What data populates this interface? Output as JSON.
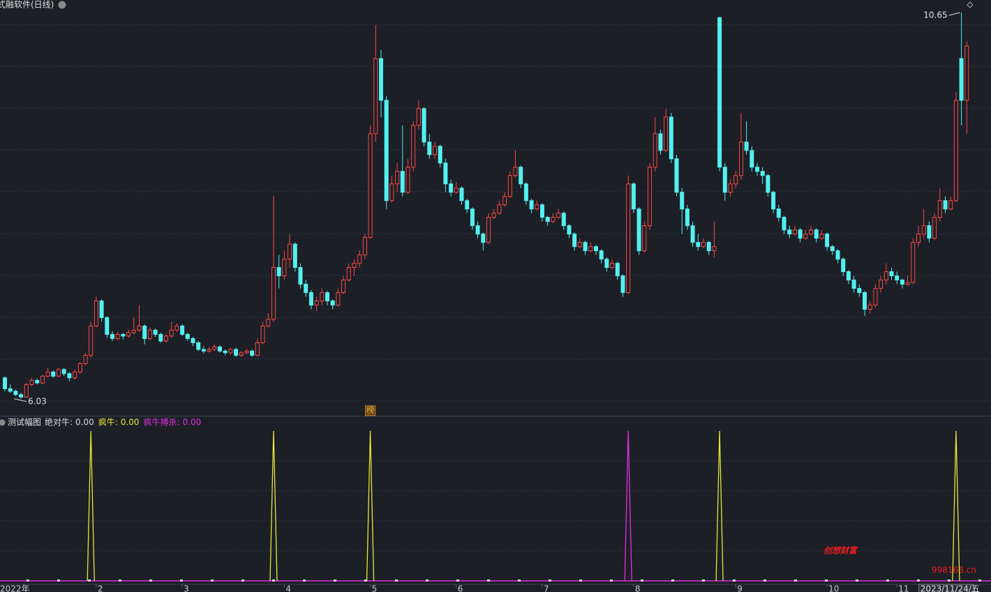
{
  "chart_data": {
    "type": "candlestick",
    "title": "式融软件(日线)",
    "candles": [
      [
        6.28,
        6.3,
        6.12,
        6.15
      ],
      [
        6.15,
        6.2,
        6.1,
        6.12
      ],
      [
        6.12,
        6.14,
        6.06,
        6.08
      ],
      [
        6.08,
        6.1,
        6.03,
        6.05
      ],
      [
        6.05,
        6.22,
        6.04,
        6.2
      ],
      [
        6.2,
        6.28,
        6.18,
        6.25
      ],
      [
        6.25,
        6.27,
        6.2,
        6.22
      ],
      [
        6.22,
        6.32,
        6.2,
        6.3
      ],
      [
        6.3,
        6.4,
        6.28,
        6.35
      ],
      [
        6.35,
        6.37,
        6.28,
        6.3
      ],
      [
        6.3,
        6.4,
        6.29,
        6.38
      ],
      [
        6.38,
        6.4,
        6.3,
        6.33
      ],
      [
        6.33,
        6.35,
        6.24,
        6.28
      ],
      [
        6.28,
        6.38,
        6.26,
        6.35
      ],
      [
        6.35,
        6.47,
        6.33,
        6.45
      ],
      [
        6.45,
        6.58,
        6.43,
        6.55
      ],
      [
        6.55,
        6.95,
        6.52,
        6.9
      ],
      [
        6.9,
        7.25,
        6.88,
        7.2
      ],
      [
        7.2,
        7.22,
        6.95,
        7.0
      ],
      [
        7.0,
        7.02,
        6.76,
        6.8
      ],
      [
        6.8,
        6.84,
        6.72,
        6.75
      ],
      [
        6.75,
        6.83,
        6.73,
        6.8
      ],
      [
        6.8,
        6.82,
        6.74,
        6.78
      ],
      [
        6.78,
        6.86,
        6.76,
        6.82
      ],
      [
        6.82,
        7.0,
        6.8,
        6.85
      ],
      [
        6.85,
        7.15,
        6.83,
        6.9
      ],
      [
        6.9,
        6.92,
        6.68,
        6.75
      ],
      [
        6.75,
        6.88,
        6.73,
        6.85
      ],
      [
        6.85,
        6.87,
        6.77,
        6.8
      ],
      [
        6.8,
        6.82,
        6.7,
        6.72
      ],
      [
        6.72,
        6.8,
        6.7,
        6.78
      ],
      [
        6.78,
        6.95,
        6.76,
        6.85
      ],
      [
        6.85,
        6.93,
        6.83,
        6.9
      ],
      [
        6.9,
        6.92,
        6.78,
        6.8
      ],
      [
        6.8,
        6.82,
        6.72,
        6.75
      ],
      [
        6.75,
        6.77,
        6.66,
        6.7
      ],
      [
        6.7,
        6.72,
        6.6,
        6.62
      ],
      [
        6.62,
        6.66,
        6.57,
        6.6
      ],
      [
        6.6,
        6.65,
        6.58,
        6.62
      ],
      [
        6.62,
        6.68,
        6.6,
        6.65
      ],
      [
        6.65,
        6.67,
        6.58,
        6.6
      ],
      [
        6.6,
        6.62,
        6.55,
        6.58
      ],
      [
        6.58,
        6.64,
        6.56,
        6.62
      ],
      [
        6.62,
        6.64,
        6.53,
        6.55
      ],
      [
        6.55,
        6.6,
        6.53,
        6.58
      ],
      [
        6.58,
        6.63,
        6.56,
        6.6
      ],
      [
        6.6,
        6.62,
        6.53,
        6.55
      ],
      [
        6.55,
        6.75,
        6.54,
        6.7
      ],
      [
        6.7,
        6.95,
        6.68,
        6.9
      ],
      [
        6.9,
        7.05,
        6.88,
        6.98
      ],
      [
        6.98,
        8.46,
        6.95,
        7.6
      ],
      [
        7.6,
        7.75,
        7.35,
        7.5
      ],
      [
        7.5,
        7.8,
        7.45,
        7.7
      ],
      [
        7.7,
        8.0,
        7.6,
        7.88
      ],
      [
        7.88,
        7.9,
        7.55,
        7.6
      ],
      [
        7.6,
        7.65,
        7.35,
        7.4
      ],
      [
        7.4,
        7.45,
        7.25,
        7.3
      ],
      [
        7.3,
        7.33,
        7.1,
        7.15
      ],
      [
        7.15,
        7.25,
        7.08,
        7.2
      ],
      [
        7.2,
        7.35,
        7.15,
        7.3
      ],
      [
        7.3,
        7.32,
        7.15,
        7.2
      ],
      [
        7.2,
        7.22,
        7.1,
        7.15
      ],
      [
        7.15,
        7.35,
        7.13,
        7.3
      ],
      [
        7.3,
        7.5,
        7.28,
        7.45
      ],
      [
        7.45,
        7.65,
        7.43,
        7.6
      ],
      [
        7.6,
        7.7,
        7.5,
        7.65
      ],
      [
        7.65,
        7.8,
        7.6,
        7.75
      ],
      [
        7.75,
        8.0,
        7.7,
        7.96
      ],
      [
        7.96,
        9.3,
        7.94,
        9.2
      ],
      [
        9.2,
        10.5,
        9.1,
        10.1
      ],
      [
        10.1,
        10.2,
        9.4,
        9.6
      ],
      [
        9.6,
        9.65,
        8.3,
        8.4
      ],
      [
        8.4,
        8.7,
        8.38,
        8.6
      ],
      [
        8.6,
        8.85,
        8.5,
        8.75
      ],
      [
        8.75,
        9.3,
        8.45,
        8.5
      ],
      [
        8.5,
        8.9,
        8.48,
        8.8
      ],
      [
        8.8,
        9.35,
        8.75,
        9.3
      ],
      [
        9.3,
        9.6,
        9.25,
        9.5
      ],
      [
        9.5,
        9.52,
        9.05,
        9.1
      ],
      [
        9.1,
        9.2,
        8.9,
        8.95
      ],
      [
        8.95,
        9.1,
        8.9,
        9.05
      ],
      [
        9.05,
        9.07,
        8.8,
        8.85
      ],
      [
        8.85,
        8.9,
        8.5,
        8.6
      ],
      [
        8.6,
        8.65,
        8.45,
        8.5
      ],
      [
        8.5,
        8.62,
        8.48,
        8.55
      ],
      [
        8.55,
        8.57,
        8.35,
        8.4
      ],
      [
        8.4,
        8.42,
        8.25,
        8.3
      ],
      [
        8.3,
        8.32,
        8.05,
        8.1
      ],
      [
        8.1,
        8.15,
        7.95,
        8.0
      ],
      [
        8.0,
        8.02,
        7.8,
        7.9
      ],
      [
        7.9,
        8.25,
        7.88,
        8.2
      ],
      [
        8.2,
        8.3,
        8.18,
        8.25
      ],
      [
        8.25,
        8.4,
        8.23,
        8.35
      ],
      [
        8.35,
        8.5,
        8.33,
        8.45
      ],
      [
        8.45,
        8.75,
        8.43,
        8.7
      ],
      [
        8.7,
        9.0,
        8.68,
        8.8
      ],
      [
        8.8,
        8.82,
        8.55,
        8.6
      ],
      [
        8.6,
        8.62,
        8.35,
        8.4
      ],
      [
        8.4,
        8.42,
        8.25,
        8.3
      ],
      [
        8.3,
        8.4,
        8.28,
        8.35
      ],
      [
        8.35,
        8.37,
        8.15,
        8.2
      ],
      [
        8.2,
        8.22,
        8.1,
        8.15
      ],
      [
        8.15,
        8.25,
        8.13,
        8.2
      ],
      [
        8.2,
        8.3,
        8.18,
        8.25
      ],
      [
        8.25,
        8.27,
        8.05,
        8.1
      ],
      [
        8.1,
        8.12,
        7.95,
        8.0
      ],
      [
        8.0,
        8.02,
        7.8,
        7.85
      ],
      [
        7.85,
        7.95,
        7.83,
        7.9
      ],
      [
        7.9,
        7.92,
        7.75,
        7.8
      ],
      [
        7.8,
        7.9,
        7.78,
        7.85
      ],
      [
        7.85,
        7.87,
        7.75,
        7.8
      ],
      [
        7.8,
        7.82,
        7.65,
        7.7
      ],
      [
        7.7,
        7.72,
        7.55,
        7.6
      ],
      [
        7.6,
        7.7,
        7.58,
        7.65
      ],
      [
        7.65,
        7.67,
        7.45,
        7.5
      ],
      [
        7.5,
        7.52,
        7.25,
        7.3
      ],
      [
        7.3,
        8.7,
        7.28,
        8.6
      ],
      [
        8.6,
        8.62,
        8.25,
        8.3
      ],
      [
        8.3,
        8.32,
        7.75,
        7.8
      ],
      [
        7.8,
        8.15,
        7.78,
        8.1
      ],
      [
        8.1,
        8.85,
        8.05,
        8.8
      ],
      [
        8.8,
        9.4,
        8.75,
        9.2
      ],
      [
        9.2,
        9.25,
        8.95,
        9.0
      ],
      [
        9.0,
        9.5,
        8.98,
        9.4
      ],
      [
        9.4,
        9.45,
        8.85,
        8.9
      ],
      [
        8.9,
        8.95,
        8.45,
        8.5
      ],
      [
        8.5,
        8.55,
        8.0,
        8.3
      ],
      [
        8.3,
        8.35,
        8.05,
        8.1
      ],
      [
        8.1,
        8.15,
        7.85,
        7.9
      ],
      [
        7.9,
        8.0,
        7.8,
        7.85
      ],
      [
        7.85,
        7.95,
        7.83,
        7.9
      ],
      [
        7.9,
        7.92,
        7.75,
        7.8
      ],
      [
        7.8,
        8.15,
        7.72,
        7.85
      ],
      [
        10.59,
        10.59,
        8.75,
        8.8
      ],
      [
        8.8,
        8.85,
        8.4,
        8.5
      ],
      [
        8.5,
        8.65,
        8.45,
        8.6
      ],
      [
        8.6,
        8.75,
        8.55,
        8.7
      ],
      [
        8.7,
        9.45,
        8.65,
        9.1
      ],
      [
        9.1,
        9.35,
        8.95,
        9.0
      ],
      [
        9.0,
        9.05,
        8.75,
        8.8
      ],
      [
        8.8,
        8.85,
        8.7,
        8.75
      ],
      [
        8.75,
        8.8,
        8.6,
        8.7
      ],
      [
        8.7,
        8.72,
        8.45,
        8.5
      ],
      [
        8.5,
        8.52,
        8.25,
        8.3
      ],
      [
        8.3,
        8.35,
        8.15,
        8.2
      ],
      [
        8.2,
        8.22,
        8.0,
        8.05
      ],
      [
        8.05,
        8.1,
        7.95,
        8.0
      ],
      [
        8.0,
        8.1,
        7.98,
        8.05
      ],
      [
        8.05,
        8.07,
        7.9,
        7.95
      ],
      [
        7.95,
        8.05,
        7.93,
        8.0
      ],
      [
        8.0,
        8.1,
        7.98,
        8.05
      ],
      [
        8.05,
        8.07,
        7.9,
        7.95
      ],
      [
        7.95,
        8.05,
        7.93,
        8.0
      ],
      [
        8.0,
        8.02,
        7.8,
        7.85
      ],
      [
        7.85,
        7.87,
        7.75,
        7.8
      ],
      [
        7.8,
        7.82,
        7.65,
        7.7
      ],
      [
        7.7,
        7.72,
        7.5,
        7.55
      ],
      [
        7.55,
        7.57,
        7.4,
        7.45
      ],
      [
        7.45,
        7.5,
        7.3,
        7.35
      ],
      [
        7.35,
        7.4,
        7.25,
        7.3
      ],
      [
        7.3,
        7.32,
        7.02,
        7.1
      ],
      [
        7.1,
        7.2,
        7.05,
        7.15
      ],
      [
        7.15,
        7.4,
        7.12,
        7.35
      ],
      [
        7.35,
        7.5,
        7.3,
        7.45
      ],
      [
        7.45,
        7.65,
        7.4,
        7.55
      ],
      [
        7.55,
        7.6,
        7.45,
        7.5
      ],
      [
        7.5,
        7.55,
        7.4,
        7.45
      ],
      [
        7.45,
        7.47,
        7.35,
        7.4
      ],
      [
        7.4,
        7.5,
        7.38,
        7.42
      ],
      [
        7.42,
        7.95,
        7.4,
        7.9
      ],
      [
        7.9,
        8.1,
        7.85,
        8.0
      ],
      [
        8.0,
        8.3,
        7.95,
        8.1
      ],
      [
        8.1,
        8.15,
        7.9,
        7.95
      ],
      [
        7.95,
        8.25,
        7.93,
        8.2
      ],
      [
        8.2,
        8.55,
        8.15,
        8.4
      ],
      [
        8.4,
        8.45,
        8.25,
        8.3
      ],
      [
        8.3,
        8.45,
        8.28,
        8.4
      ],
      [
        8.4,
        9.7,
        8.38,
        9.6
      ],
      [
        10.1,
        10.65,
        9.3,
        9.6
      ],
      [
        9.6,
        10.3,
        9.2,
        10.25
      ]
    ],
    "up_color": "#ff4848",
    "down_color": "#54f0f0",
    "ylim": [
      5.82,
      10.8
    ],
    "grid": true,
    "max_label": {
      "index": 178,
      "value": 10.65,
      "label": "10.65"
    },
    "min_label": {
      "index": 3,
      "value": 6.03,
      "label": "6.03"
    },
    "marker": {
      "index": 68,
      "label": "榜"
    },
    "x_labels": [
      {
        "index": 0,
        "label": "2022年"
      },
      {
        "index": 17,
        "label": "2"
      },
      {
        "index": 33,
        "label": "3"
      },
      {
        "index": 52,
        "label": "4"
      },
      {
        "index": 68,
        "label": "5"
      },
      {
        "index": 84,
        "label": "6"
      },
      {
        "index": 100,
        "label": "7"
      },
      {
        "index": 117,
        "label": "8"
      },
      {
        "index": 136,
        "label": "9"
      },
      {
        "index": 153,
        "label": "10"
      },
      {
        "index": 166,
        "label": "11"
      }
    ],
    "current_date": {
      "index": 171,
      "label": "2023/11/24/五"
    },
    "indicator": {
      "name": "测试幅图",
      "ylim": [
        0,
        1
      ],
      "series": [
        {
          "name": "绝对牛:",
          "value": 0,
          "value_label": "0.00",
          "color": "#dddddd"
        },
        {
          "name": "疯牛:",
          "value": 0,
          "value_label": "0.00",
          "color": "#e8e83a"
        },
        {
          "name": "疯牛搏杀:",
          "value": 0,
          "value_label": "0.00",
          "color": "#e030e0"
        }
      ],
      "spikes": [
        {
          "series": 1,
          "index": 16,
          "value": 1
        },
        {
          "series": 1,
          "index": 50,
          "value": 1
        },
        {
          "series": 1,
          "index": 68,
          "value": 1
        },
        {
          "series": 2,
          "index": 116,
          "value": 1
        },
        {
          "series": 1,
          "index": 133,
          "value": 1
        },
        {
          "series": 1,
          "index": 177,
          "value": 1
        }
      ]
    },
    "watermark": {
      "title": "创想财富",
      "url": "998168.cn"
    }
  }
}
